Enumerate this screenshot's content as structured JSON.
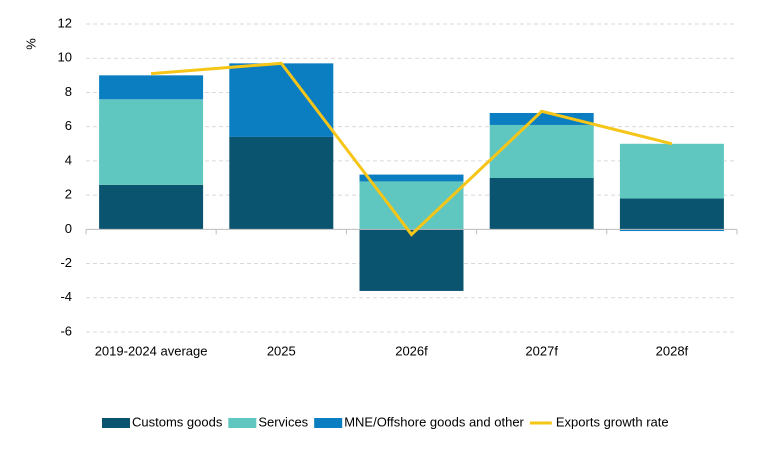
{
  "chart_data": {
    "type": "bar",
    "stacked": true,
    "y_label": "%",
    "categories": [
      "2019-2024 average",
      "2025",
      "2026f",
      "2027f",
      "2028f"
    ],
    "series": [
      {
        "name": "Customs goods",
        "color": "#0b5470",
        "values": [
          2.6,
          5.4,
          -3.6,
          3.0,
          1.8
        ]
      },
      {
        "name": "Services",
        "color": "#5fc6c0",
        "values": [
          5.0,
          0,
          2.8,
          3.1,
          3.2
        ]
      },
      {
        "name": "MNE/Offshore goods and other",
        "color": "#0b7dc1",
        "values": [
          1.4,
          4.3,
          0.4,
          0.7,
          -0.1
        ]
      },
      {
        "name": "Exports growth rate",
        "color": "#f5c518",
        "type": "line",
        "values": [
          9.1,
          9.7,
          -0.3,
          6.9,
          5.0
        ]
      }
    ],
    "ylim": [
      -6,
      12
    ],
    "yticks": [
      -6,
      -4,
      -2,
      0,
      2,
      4,
      6,
      8,
      10,
      12
    ],
    "grid": true,
    "legend": "bottom"
  }
}
